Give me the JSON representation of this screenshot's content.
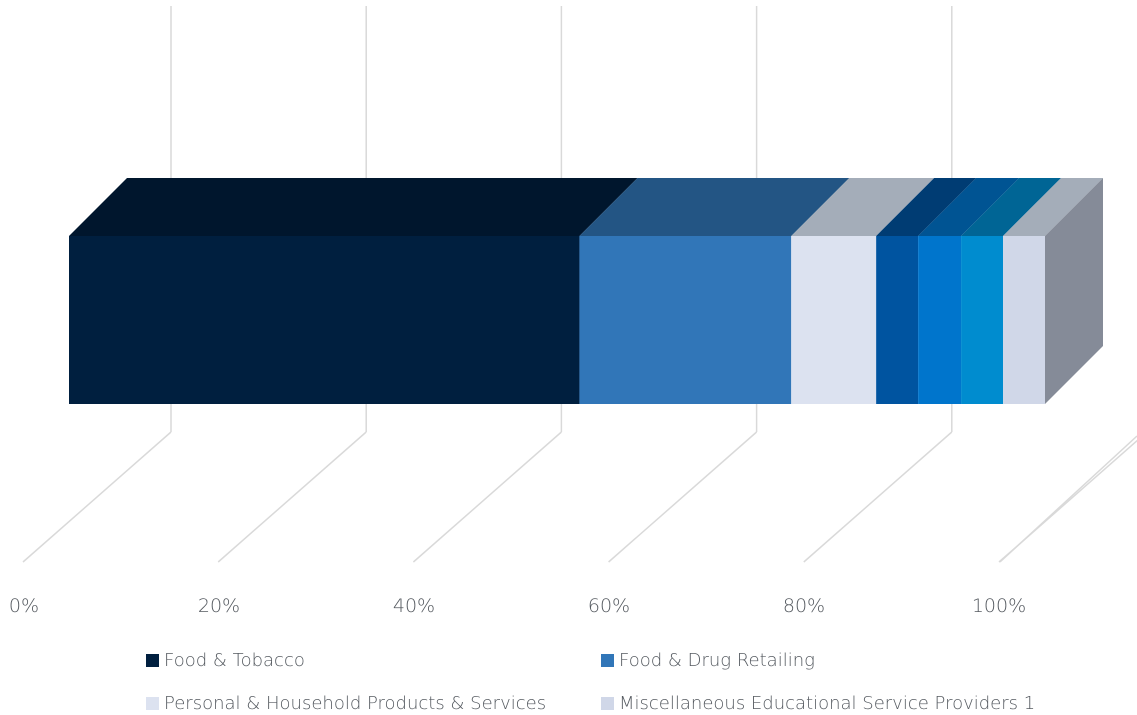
{
  "chart_data": {
    "type": "bar",
    "orientation": "horizontal",
    "stacked": true,
    "percent": true,
    "style": "3d",
    "x_ticks": [
      "0%",
      "20%",
      "40%",
      "60%",
      "80%",
      "100%"
    ],
    "xlim": [
      0,
      100
    ],
    "grid": true,
    "legend_position": "bottom",
    "series": [
      {
        "name": "Food & Tobacco",
        "value": 52.3,
        "color": "#001f3f",
        "legend": true
      },
      {
        "name": "Food & Drug Retailing",
        "value": 21.7,
        "color": "#3176b8",
        "legend": true
      },
      {
        "name": "Personal & Household Products & Services",
        "value": 8.7,
        "color": "#dce2f0",
        "legend": true
      },
      {
        "name": "",
        "value": 4.3,
        "color": "#0054a0",
        "legend": false
      },
      {
        "name": "",
        "value": 4.4,
        "color": "#0075cc",
        "legend": false
      },
      {
        "name": "",
        "value": 4.3,
        "color": "#008ccf",
        "legend": false
      },
      {
        "name": "Miscellaneous Educational Service Providers 1",
        "value": 4.3,
        "color": "#d0d7e8",
        "legend": true
      }
    ]
  }
}
